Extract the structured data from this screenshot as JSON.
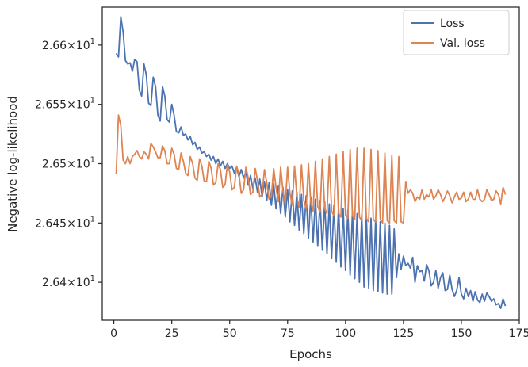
{
  "chart_data": {
    "type": "line",
    "title": "",
    "xlabel": "Epochs",
    "ylabel": "Negative log-likelihood",
    "xlim": [
      -5,
      175
    ],
    "ylim": [
      26.368,
      26.632
    ],
    "grid": false,
    "legend_position": "top-right",
    "x_ticks": [
      0,
      25,
      50,
      75,
      100,
      125,
      150,
      175
    ],
    "x_tick_labels": [
      "0",
      "25",
      "50",
      "75",
      "100",
      "125",
      "150",
      "175"
    ],
    "y_ticks": [
      26.4,
      26.45,
      26.5,
      26.55,
      26.6
    ],
    "y_tick_labels": [
      {
        "mant": "2.64",
        "base": "10",
        "exp": "1"
      },
      {
        "mant": "2.645",
        "base": "10",
        "exp": "1"
      },
      {
        "mant": "2.65",
        "base": "10",
        "exp": "1"
      },
      {
        "mant": "2.655",
        "base": "10",
        "exp": "1"
      },
      {
        "mant": "2.66",
        "base": "10",
        "exp": "1"
      }
    ],
    "series": [
      {
        "name": "Loss",
        "color": "#4c72b0",
        "x_start": 1,
        "values": [
          26.593,
          26.59,
          26.624,
          26.611,
          26.587,
          26.584,
          26.585,
          26.578,
          26.588,
          26.586,
          26.562,
          26.557,
          26.584,
          26.575,
          26.551,
          26.549,
          26.573,
          26.565,
          26.541,
          26.536,
          26.565,
          26.557,
          26.537,
          26.535,
          26.55,
          26.541,
          26.527,
          26.526,
          26.531,
          26.524,
          26.525,
          26.52,
          26.523,
          26.516,
          26.518,
          26.512,
          26.514,
          26.509,
          26.51,
          26.506,
          26.508,
          26.503,
          26.506,
          26.5,
          26.504,
          26.498,
          26.502,
          26.496,
          26.5,
          26.496,
          26.498,
          26.492,
          26.497,
          26.489,
          26.495,
          26.488,
          26.493,
          26.482,
          26.49,
          26.479,
          26.488,
          26.476,
          26.487,
          26.472,
          26.485,
          26.469,
          26.484,
          26.465,
          26.483,
          26.462,
          26.481,
          26.458,
          26.48,
          26.455,
          26.478,
          26.451,
          26.477,
          26.448,
          26.476,
          26.444,
          26.474,
          26.441,
          26.473,
          26.437,
          26.472,
          26.434,
          26.47,
          26.431,
          26.469,
          26.427,
          26.468,
          26.424,
          26.466,
          26.42,
          26.465,
          26.417,
          26.464,
          26.413,
          26.462,
          26.41,
          26.461,
          26.406,
          26.46,
          26.403,
          26.458,
          26.4,
          26.457,
          26.396,
          26.456,
          26.395,
          26.454,
          26.393,
          26.453,
          26.392,
          26.451,
          26.391,
          26.45,
          26.39,
          26.448,
          26.39,
          26.445,
          26.404,
          26.424,
          26.411,
          26.422,
          26.414,
          26.416,
          26.412,
          26.421,
          26.4,
          26.414,
          26.409,
          26.41,
          26.401,
          26.415,
          26.41,
          26.397,
          26.4,
          26.41,
          26.395,
          26.404,
          26.408,
          26.393,
          26.394,
          26.406,
          26.394,
          26.388,
          26.393,
          26.404,
          26.39,
          26.386,
          26.395,
          26.388,
          26.393,
          26.384,
          26.392,
          26.385,
          26.383,
          26.39,
          26.384,
          26.391,
          26.388,
          26.384,
          26.386,
          26.381,
          26.382,
          26.378,
          26.386,
          26.38
        ]
      },
      {
        "name": "Val. loss",
        "color": "#dd8452",
        "x_start": 1,
        "values": [
          26.491,
          26.541,
          26.532,
          26.503,
          26.5,
          26.506,
          26.5,
          26.506,
          26.508,
          26.511,
          26.506,
          26.504,
          26.51,
          26.508,
          26.504,
          26.517,
          26.514,
          26.51,
          26.505,
          26.505,
          26.515,
          26.511,
          26.5,
          26.5,
          26.513,
          26.508,
          26.496,
          26.495,
          26.509,
          26.502,
          26.492,
          26.49,
          26.506,
          26.5,
          26.488,
          26.486,
          26.504,
          26.498,
          26.485,
          26.485,
          26.502,
          26.496,
          26.482,
          26.484,
          26.5,
          26.495,
          26.48,
          26.482,
          26.499,
          26.493,
          26.478,
          26.48,
          26.498,
          26.491,
          26.475,
          26.478,
          26.497,
          26.488,
          26.474,
          26.476,
          26.496,
          26.486,
          26.472,
          26.474,
          26.495,
          26.484,
          26.47,
          26.473,
          26.496,
          26.48,
          26.468,
          26.497,
          26.477,
          26.466,
          26.497,
          26.475,
          26.465,
          26.498,
          26.472,
          26.463,
          26.499,
          26.469,
          26.462,
          26.5,
          26.467,
          26.46,
          26.502,
          26.464,
          26.459,
          26.504,
          26.462,
          26.458,
          26.506,
          26.46,
          26.456,
          26.508,
          26.458,
          26.455,
          26.51,
          26.457,
          26.454,
          26.512,
          26.456,
          26.453,
          26.513,
          26.455,
          26.452,
          26.513,
          26.454,
          26.451,
          26.512,
          26.453,
          26.451,
          26.511,
          26.453,
          26.45,
          26.509,
          26.452,
          26.45,
          26.507,
          26.452,
          26.45,
          26.506,
          26.451,
          26.45,
          26.485,
          26.475,
          26.478,
          26.475,
          26.468,
          26.472,
          26.47,
          26.478,
          26.47,
          26.474,
          26.472,
          26.478,
          26.47,
          26.473,
          26.478,
          26.474,
          26.468,
          26.472,
          26.477,
          26.473,
          26.467,
          26.472,
          26.476,
          26.47,
          26.471,
          26.476,
          26.468,
          26.47,
          26.476,
          26.47,
          26.47,
          26.478,
          26.47,
          26.468,
          26.47,
          26.478,
          26.474,
          26.469,
          26.47,
          26.477,
          26.474,
          26.466,
          26.48,
          26.474
        ]
      }
    ]
  }
}
